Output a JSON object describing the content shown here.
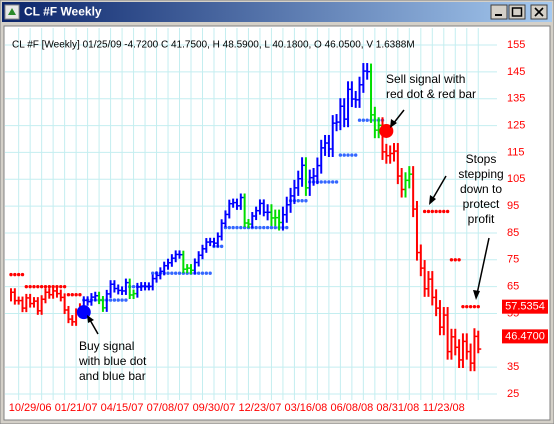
{
  "chart_data": {
    "type": "hlc",
    "title": "CL #F Weekly",
    "subtitle": "CL #F [Weekly] 01/25/09 -4.7200 C 41.7500, H 48.5900, L 40.1800, O 46.0500, V 1.6388M",
    "categories": [
      null,
      null,
      null,
      null,
      null,
      "10/29/06",
      null,
      null,
      null,
      null,
      null,
      null,
      null,
      null,
      null,
      null,
      null,
      "01/21/07",
      null,
      null,
      null,
      null,
      null,
      null,
      null,
      null,
      null,
      null,
      null,
      "04/15/07",
      null,
      null,
      null,
      null,
      null,
      null,
      null,
      null,
      null,
      null,
      null,
      "07/08/07",
      null,
      null,
      null,
      null,
      null,
      null,
      null,
      null,
      null,
      null,
      null,
      "09/30/07",
      null,
      null,
      null,
      null,
      null,
      null,
      null,
      null,
      null,
      null,
      null,
      "12/23/07",
      null,
      null,
      null,
      null,
      null,
      null,
      null,
      null,
      null,
      null,
      null,
      "03/16/08",
      null,
      null,
      null,
      null,
      null,
      null,
      null,
      null,
      null,
      null,
      null,
      "06/08/08",
      null,
      null,
      null,
      null,
      null,
      null,
      null,
      null,
      null,
      null,
      null,
      "08/31/08",
      null,
      null,
      null,
      null,
      null,
      null,
      null,
      null,
      null,
      null,
      null,
      "11/23/08",
      null,
      null,
      null,
      null,
      null,
      null,
      null,
      null,
      null
    ],
    "high": [
      64.4,
      64.4,
      61.3,
      61.3,
      62.3,
      62.3,
      61.1,
      61.1,
      61.8,
      64.4,
      64.4,
      64.9,
      64.9,
      63.9,
      62.5,
      57.8,
      54.4,
      56.9,
      58.8,
      61.4,
      61.4,
      62.6,
      63.1,
      63.1,
      61.5,
      63.8,
      67.4,
      67.4,
      65.8,
      65.1,
      68.0,
      68.0,
      63.9,
      66.4,
      66.7,
      66.7,
      66.6,
      69.5,
      70.7,
      72.2,
      74.3,
      75.4,
      77.1,
      78.5,
      78.5,
      78.4,
      73.4,
      73.4,
      75.5,
      78.2,
      80.6,
      83.1,
      83.2,
      83.2,
      85.2,
      90.1,
      93.4,
      97.4,
      97.8,
      97.8,
      99.7,
      99.7,
      90.2,
      92.8,
      94.8,
      97.5,
      97.5,
      95.7,
      95.7,
      93.7,
      93.7,
      94.8,
      98.5,
      101.8,
      104.8,
      108.2,
      113.2,
      113.2,
      108.6,
      109.2,
      113.1,
      119.7,
      121.5,
      121.5,
      128.9,
      129.3,
      135.2,
      135.2,
      141.5,
      141.5,
      137.9,
      143.2,
      148.3,
      148.3,
      148.1,
      132.0,
      128.1,
      128.1,
      118.2,
      117.6,
      118.5,
      118.5,
      109.2,
      107.6,
      109.9,
      109.9,
      96.9,
      80.7,
      74.9,
      70.8,
      70.8,
      64.0,
      60.0,
      57.4,
      57.4,
      49.3,
      49.3,
      45.4,
      47.6,
      47.6,
      43.8,
      49.5,
      48.59
    ],
    "low": [
      59.5,
      58.3,
      58.3,
      55.5,
      55.5,
      57.2,
      57.2,
      54.5,
      54.5,
      58.8,
      60.5,
      60.5,
      60.9,
      59.5,
      54.8,
      51.4,
      50.4,
      50.4,
      53.9,
      55.8,
      57.9,
      57.9,
      59.6,
      58.5,
      55.6,
      55.6,
      60.8,
      62.8,
      62.1,
      61.9,
      61.9,
      60.4,
      60.4,
      60.9,
      63.4,
      63.6,
      63.6,
      63.6,
      66.5,
      67.7,
      69.2,
      71.3,
      72.4,
      74.1,
      75.4,
      70.0,
      70.0,
      69.6,
      69.6,
      72.5,
      75.2,
      77.6,
      80.1,
      79.7,
      79.7,
      82.2,
      87.1,
      90.4,
      94.4,
      93.6,
      93.6,
      87.2,
      86.8,
      86.8,
      89.8,
      91.8,
      91.2,
      89.7,
      87.6,
      87.6,
      85.9,
      85.9,
      88.8,
      92.5,
      95.8,
      98.8,
      102.2,
      98.8,
      98.8,
      102.6,
      103.2,
      107.1,
      113.7,
      113.3,
      113.3,
      122.9,
      123.3,
      124.4,
      124.4,
      131.9,
      131.6,
      131.6,
      137.2,
      142.1,
      126.0,
      120.3,
      120.3,
      112.2,
      110.8,
      110.8,
      111.6,
      103.2,
      98.2,
      98.2,
      101.6,
      90.9,
      74.7,
      68.9,
      61.2,
      61.2,
      58.0,
      54.0,
      46.9,
      46.9,
      37.8,
      37.8,
      39.4,
      34.7,
      34.7,
      37.8,
      33.5,
      33.5,
      40.18
    ],
    "close": [
      62.9,
      59.8,
      59.8,
      57.0,
      60.8,
      58.7,
      59.6,
      56.0,
      60.3,
      62.9,
      62.0,
      63.4,
      62.4,
      61.0,
      56.3,
      52.9,
      51.9,
      55.4,
      57.3,
      59.9,
      59.4,
      61.1,
      61.6,
      60.0,
      57.1,
      62.3,
      65.9,
      64.3,
      63.6,
      63.4,
      66.5,
      61.9,
      62.4,
      64.9,
      65.2,
      65.1,
      65.1,
      68.0,
      69.2,
      70.7,
      72.8,
      73.9,
      75.6,
      77.0,
      76.9,
      71.5,
      71.9,
      71.1,
      74.0,
      76.7,
      79.1,
      81.6,
      81.7,
      81.2,
      83.7,
      88.6,
      91.9,
      95.9,
      96.3,
      95.1,
      98.2,
      88.7,
      88.3,
      91.3,
      93.3,
      96.0,
      92.7,
      92.7,
      90.6,
      90.7,
      88.9,
      91.8,
      95.5,
      98.8,
      101.8,
      105.2,
      110.2,
      101.8,
      105.6,
      106.2,
      110.1,
      116.7,
      118.5,
      116.3,
      125.9,
      126.3,
      132.2,
      127.4,
      138.5,
      134.9,
      134.6,
      140.2,
      145.3,
      145.1,
      129.0,
      123.3,
      125.1,
      115.2,
      113.8,
      114.6,
      115.5,
      106.2,
      101.2,
      104.6,
      106.9,
      93.9,
      77.7,
      71.9,
      64.2,
      67.8,
      61.0,
      57.0,
      49.9,
      54.4,
      40.8,
      46.3,
      42.4,
      37.7,
      44.6,
      40.8,
      36.5,
      46.47,
      41.75
    ],
    "bar_colors": [
      "#ff0000",
      "#ff0000",
      "#ff0000",
      "#ff0000",
      "#ff0000",
      "#ff0000",
      "#ff0000",
      "#ff0000",
      "#ff0000",
      "#ff0000",
      "#ff0000",
      "#ff0000",
      "#ff0000",
      "#ff0000",
      "#ff0000",
      "#ff0000",
      "#ff0000",
      "#ff0000",
      "#ff0000",
      "#0000ff",
      "#0000ff",
      "#0000ff",
      "#0000ff",
      "#00dd00",
      "#00dd00",
      "#0000ff",
      "#0000ff",
      "#0000ff",
      "#0000ff",
      "#0000ff",
      "#0000ff",
      "#00dd00",
      "#00dd00",
      "#0000ff",
      "#0000ff",
      "#0000ff",
      "#0000ff",
      "#0000ff",
      "#0000ff",
      "#0000ff",
      "#0000ff",
      "#0000ff",
      "#0000ff",
      "#0000ff",
      "#0000ff",
      "#00dd00",
      "#00dd00",
      "#00dd00",
      "#0000ff",
      "#0000ff",
      "#0000ff",
      "#0000ff",
      "#0000ff",
      "#0000ff",
      "#0000ff",
      "#0000ff",
      "#0000ff",
      "#0000ff",
      "#0000ff",
      "#0000ff",
      "#0000ff",
      "#00dd00",
      "#00dd00",
      "#0000ff",
      "#0000ff",
      "#0000ff",
      "#0000ff",
      "#0000ff",
      "#00dd00",
      "#00dd00",
      "#00dd00",
      "#0000ff",
      "#0000ff",
      "#0000ff",
      "#0000ff",
      "#0000ff",
      "#0000ff",
      "#00dd00",
      "#0000ff",
      "#0000ff",
      "#0000ff",
      "#0000ff",
      "#0000ff",
      "#0000ff",
      "#0000ff",
      "#0000ff",
      "#0000ff",
      "#0000ff",
      "#0000ff",
      "#0000ff",
      "#0000ff",
      "#0000ff",
      "#0000ff",
      "#0000ff",
      "#00dd00",
      "#00dd00",
      "#00dd00",
      "#ff0000",
      "#ff0000",
      "#ff0000",
      "#ff0000",
      "#ff0000",
      "#ff0000",
      "#00dd00",
      "#00dd00",
      "#ff0000",
      "#ff0000",
      "#ff0000",
      "#ff0000",
      "#ff0000",
      "#ff0000",
      "#ff0000",
      "#ff0000",
      "#ff0000",
      "#ff0000",
      "#ff0000",
      "#ff0000",
      "#ff0000",
      "#ff0000",
      "#ff0000",
      "#ff0000",
      "#ff0000",
      "#ff0000",
      "#ff0000",
      "#ff0000"
    ],
    "buy_stops": {
      "color": "#3366ff",
      "values": [
        null,
        null,
        null,
        null,
        null,
        null,
        null,
        null,
        null,
        null,
        null,
        null,
        null,
        null,
        null,
        null,
        null,
        null,
        null,
        60,
        60,
        60,
        60,
        60,
        60,
        60,
        60,
        60,
        60,
        60,
        60,
        65,
        65,
        65,
        65,
        65,
        65,
        70,
        70,
        70,
        70,
        70,
        70,
        70,
        70,
        70,
        70,
        70,
        70,
        70,
        70,
        70,
        70,
        80,
        80,
        80,
        87,
        87,
        87,
        87,
        87,
        87,
        87,
        87,
        87,
        87,
        87,
        87,
        87,
        87,
        87,
        87,
        87,
        97,
        97,
        97,
        97,
        97,
        104,
        104,
        104,
        104,
        104,
        104,
        104,
        104,
        114,
        114,
        114,
        114,
        114,
        127,
        127,
        127,
        127,
        127,
        127,
        127,
        null,
        null,
        null,
        null,
        null,
        null,
        null,
        null,
        null,
        null,
        null,
        null,
        null,
        null,
        null,
        null,
        null,
        null,
        null,
        null,
        null,
        null,
        null,
        null,
        null
      ]
    },
    "sell_stops": {
      "color": "#ff0000",
      "values": [
        69.5,
        69.5,
        69.5,
        69.5,
        65,
        65,
        65,
        65,
        65,
        65,
        65,
        65,
        65,
        65,
        65,
        62,
        62,
        62,
        62,
        null,
        null,
        null,
        null,
        null,
        null,
        null,
        null,
        null,
        null,
        null,
        null,
        null,
        null,
        null,
        null,
        null,
        null,
        null,
        null,
        null,
        null,
        null,
        null,
        null,
        null,
        null,
        null,
        null,
        null,
        null,
        null,
        null,
        null,
        null,
        null,
        null,
        null,
        null,
        null,
        null,
        null,
        null,
        null,
        null,
        null,
        null,
        null,
        null,
        null,
        null,
        null,
        null,
        null,
        null,
        null,
        null,
        null,
        null,
        null,
        null,
        null,
        null,
        null,
        null,
        null,
        null,
        null,
        null,
        null,
        null,
        null,
        null,
        null,
        null,
        null,
        null,
        null,
        null,
        null,
        null,
        null,
        null,
        null,
        null,
        null,
        null,
        null,
        null,
        93,
        93,
        93,
        93,
        93,
        93,
        93,
        75,
        75,
        75,
        57.5354,
        57.5354,
        57.5354,
        57.5354,
        57.5354
      ]
    },
    "signals": [
      {
        "index": 19,
        "value": 55.5,
        "color": "#0000ff"
      },
      {
        "index": 98,
        "value": 123,
        "color": "#ff0000"
      }
    ],
    "price_tags": [
      {
        "value": 57.5354,
        "label": "57.5354",
        "color": "#ff0000"
      },
      {
        "value": 46.47,
        "label": "46.4700",
        "color": "#ff0000"
      }
    ],
    "annotations": [
      {
        "lines": [
          "Sell signal with",
          "red dot & red bar"
        ]
      },
      {
        "lines": [
          "Stops",
          "stepping",
          "down to",
          "protect",
          "profit"
        ]
      },
      {
        "lines": [
          "Buy signal",
          "with blue dot",
          "and blue bar"
        ]
      }
    ],
    "ylim": [
      24,
      158
    ],
    "yticks": [
      25,
      35,
      55,
      65,
      75,
      85,
      95,
      105,
      115,
      125,
      135,
      145,
      155
    ],
    "axis_color": "#ff0000",
    "grid": true,
    "grid_color": "#c4eef0"
  }
}
